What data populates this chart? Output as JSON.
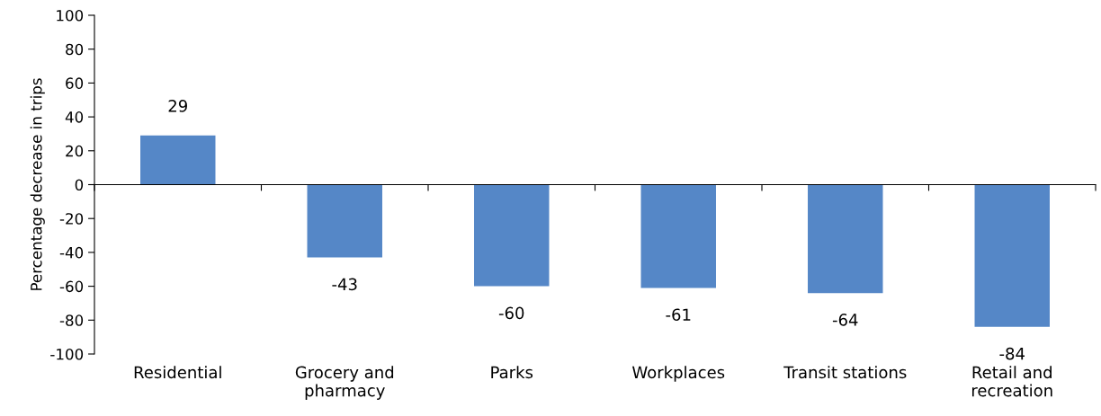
{
  "chart_data": {
    "type": "bar",
    "ylabel": "Percentage decrease in trips",
    "categories": [
      "Residential",
      "Grocery and pharmacy",
      "Parks",
      "Workplaces",
      "Transit stations",
      "Retail and recreation"
    ],
    "values": [
      29,
      -43,
      -60,
      -61,
      -64,
      -84
    ],
    "color": "#5587c7",
    "ylim": [
      -100,
      100
    ],
    "yticks": [
      -100,
      -80,
      -60,
      -40,
      -20,
      0,
      20,
      40,
      60,
      80,
      100
    ],
    "data_labels": true
  }
}
